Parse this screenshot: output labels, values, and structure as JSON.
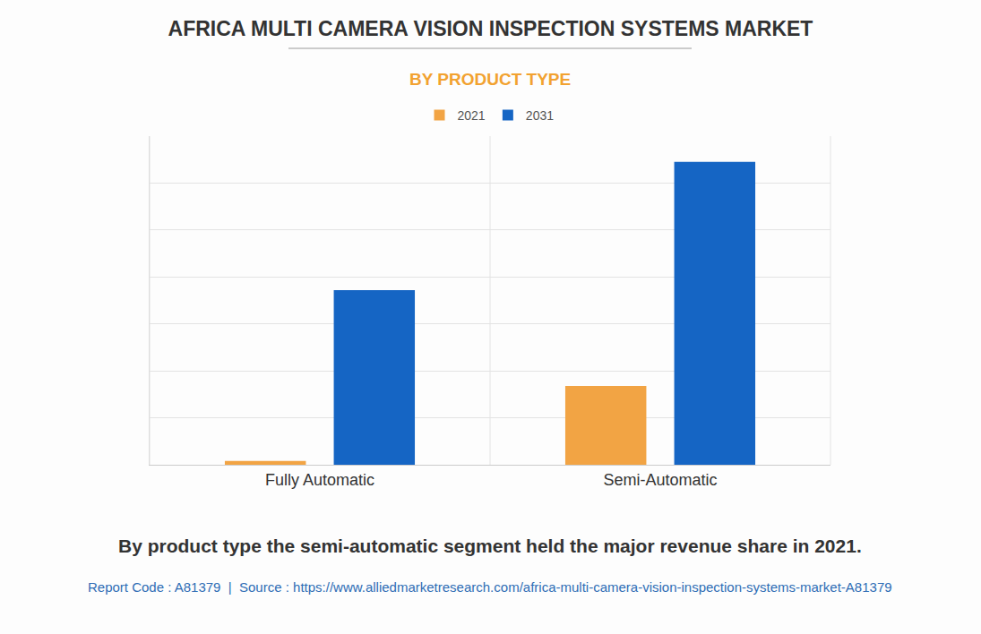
{
  "chart_data": {
    "type": "bar",
    "title": "AFRICA MULTI CAMERA VISION INSPECTION SYSTEMS MARKET",
    "subtitle": "BY PRODUCT TYPE",
    "categories": [
      "Fully Automatic",
      "Semi-Automatic"
    ],
    "series": [
      {
        "name": "2021",
        "color": "#F2A444",
        "values": [
          0.08,
          1.68
        ]
      },
      {
        "name": "2031",
        "color": "#1565C4",
        "values": [
          3.72,
          6.45
        ]
      }
    ],
    "ylim": [
      0,
      7
    ],
    "yticks": [
      0,
      1,
      2,
      3,
      4,
      5,
      6,
      7
    ],
    "grid": true,
    "tick_labels": "x",
    "legend": "top",
    "annotations": [
      "By product type the semi-automatic segment held the major revenue share in 2021.",
      "Report Code : A81379  |  Source : https://www.alliedmarketresearch.com/africa-multi-camera-vision-inspection-systems-market-A81379"
    ]
  }
}
